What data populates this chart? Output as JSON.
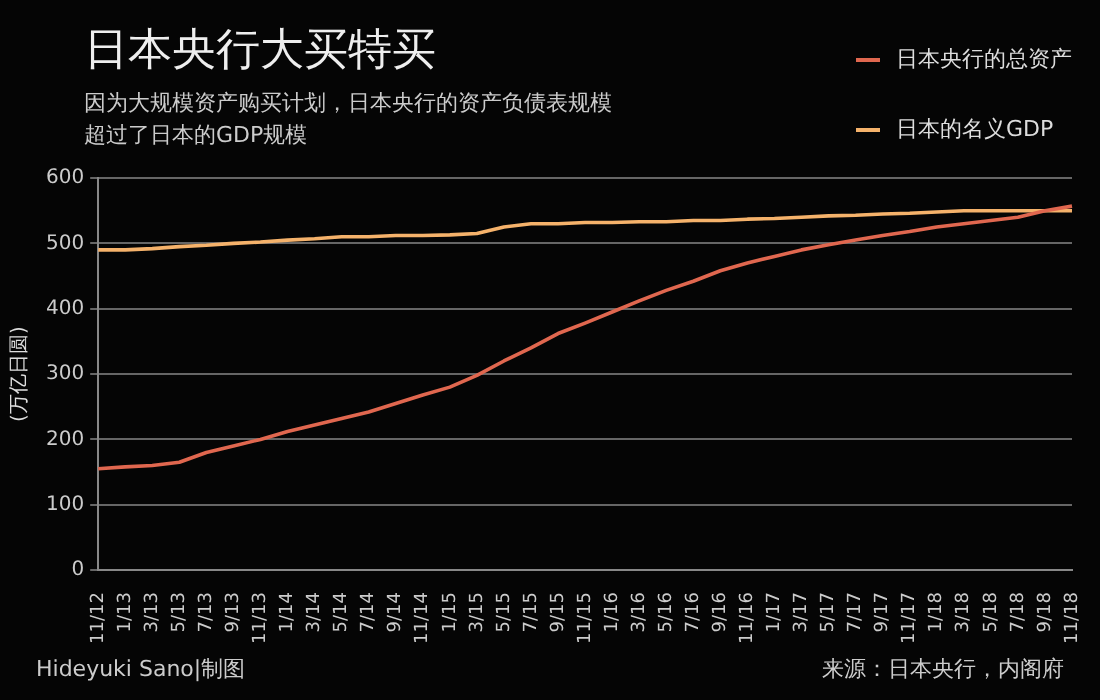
{
  "chart_data": {
    "type": "line",
    "title": "日本央行大买特买",
    "subtitle": "因为大规模资产购买计划，日本央行的资产负债表规模超过了日本的GDP规模",
    "ylabel": "(万亿日圆)",
    "categories": [
      "11/12",
      "1/13",
      "3/13",
      "5/13",
      "7/13",
      "9/13",
      "11/13",
      "1/14",
      "3/14",
      "5/14",
      "7/14",
      "9/14",
      "11/14",
      "1/15",
      "3/15",
      "5/15",
      "7/15",
      "9/15",
      "11/15",
      "1/16",
      "3/16",
      "5/16",
      "7/16",
      "9/16",
      "11/16",
      "1/17",
      "3/17",
      "5/17",
      "7/17",
      "9/17",
      "11/17",
      "1/18",
      "3/18",
      "5/18",
      "7/18",
      "9/18",
      "11/18"
    ],
    "series": [
      {
        "name": "日本央行的总资产",
        "color": "#e0674f",
        "values": [
          155,
          158,
          160,
          165,
          180,
          190,
          200,
          212,
          222,
          232,
          242,
          255,
          268,
          280,
          298,
          320,
          340,
          362,
          378,
          395,
          412,
          428,
          442,
          458,
          470,
          480,
          490,
          498,
          505,
          512,
          518,
          525,
          530,
          535,
          540,
          550,
          557
        ]
      },
      {
        "name": "日本的名义GDP",
        "color": "#f5b26b",
        "values": [
          490,
          490,
          492,
          495,
          497,
          500,
          502,
          505,
          507,
          510,
          510,
          512,
          512,
          513,
          515,
          525,
          530,
          530,
          532,
          532,
          533,
          533,
          535,
          535,
          537,
          538,
          540,
          542,
          543,
          545,
          546,
          548,
          550,
          550,
          550,
          550,
          550
        ]
      }
    ],
    "ylim": [
      0,
      600
    ],
    "yticks": [
      0,
      100,
      200,
      300,
      400,
      500,
      600
    ],
    "grid": "y",
    "legend": "top right",
    "marker": "none",
    "line_style": "solid",
    "annotations": [
      "Hideyuki Sano|制图",
      "来源：日本央行，内阁府"
    ]
  }
}
